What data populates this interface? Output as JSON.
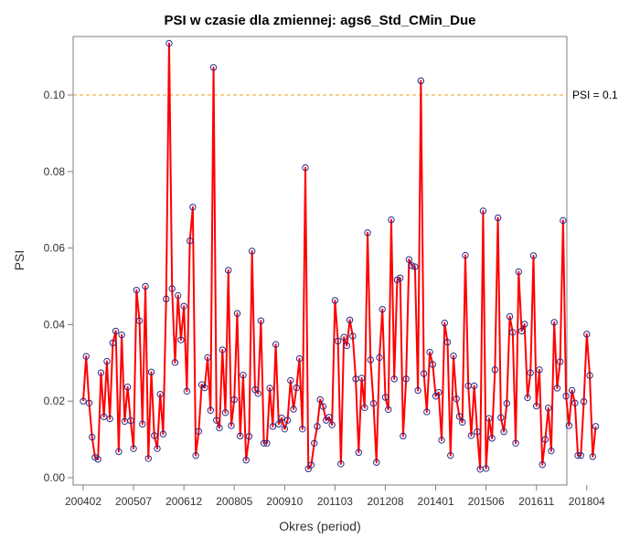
{
  "chart_data": {
    "type": "line",
    "title": "PSI w czasie dla zmiennej: ags6_Std_CMin_Due",
    "xlabel": "Okres (period)",
    "ylabel": "PSI",
    "ylim": [
      0,
      0.115
    ],
    "yticks": [
      "0.00",
      "0.02",
      "0.04",
      "0.06",
      "0.08",
      "0.10"
    ],
    "xticks": [
      "200402",
      "200507",
      "200612",
      "200805",
      "200910",
      "201103",
      "201208",
      "201401",
      "201506",
      "201611",
      "201804"
    ],
    "grid": false,
    "legend": "none",
    "reference_line": {
      "value": 0.1,
      "label": "PSI = 0.1",
      "color": "#e8a317"
    },
    "line_color": "#ff0000",
    "marker_color": "#2b2b8c",
    "x_start_period": "200402",
    "values": [
      0.02,
      0.0317,
      0.0195,
      0.0106,
      0.0053,
      0.0048,
      0.0274,
      0.0159,
      0.0304,
      0.0154,
      0.0352,
      0.0383,
      0.0068,
      0.0373,
      0.0147,
      0.0237,
      0.0149,
      0.0076,
      0.049,
      0.041,
      0.014,
      0.05,
      0.005,
      0.0276,
      0.011,
      0.0076,
      0.0218,
      0.0114,
      0.0467,
      0.1135,
      0.0494,
      0.0301,
      0.0476,
      0.036,
      0.0448,
      0.0226,
      0.0619,
      0.0707,
      0.0058,
      0.0121,
      0.0243,
      0.0235,
      0.0314,
      0.0176,
      0.1072,
      0.015,
      0.013,
      0.0334,
      0.017,
      0.0542,
      0.0136,
      0.0204,
      0.0429,
      0.0109,
      0.0268,
      0.0046,
      0.0108,
      0.0592,
      0.023,
      0.022,
      0.041,
      0.009,
      0.009,
      0.0234,
      0.0134,
      0.0348,
      0.014,
      0.0156,
      0.0127,
      0.015,
      0.0254,
      0.0179,
      0.0235,
      0.0311,
      0.0127,
      0.081,
      0.0023,
      0.0033,
      0.009,
      0.0134,
      0.0204,
      0.0186,
      0.015,
      0.0158,
      0.0138,
      0.0463,
      0.0357,
      0.0036,
      0.0367,
      0.0345,
      0.0412,
      0.037,
      0.0258,
      0.0066,
      0.026,
      0.0183,
      0.064,
      0.0308,
      0.0194,
      0.004,
      0.0314,
      0.044,
      0.021,
      0.0178,
      0.0674,
      0.0258,
      0.0517,
      0.0522,
      0.0109,
      0.0258,
      0.057,
      0.0554,
      0.0551,
      0.0228,
      0.1037,
      0.0272,
      0.0172,
      0.0328,
      0.0296,
      0.0213,
      0.0223,
      0.0098,
      0.0404,
      0.0354,
      0.0058,
      0.0318,
      0.0206,
      0.016,
      0.0145,
      0.0581,
      0.024,
      0.011,
      0.024,
      0.012,
      0.0022,
      0.0697,
      0.0024,
      0.0155,
      0.0103,
      0.0282,
      0.0679,
      0.0157,
      0.012,
      0.0194,
      0.0421,
      0.038,
      0.009,
      0.0538,
      0.0383,
      0.0401,
      0.0209,
      0.0274,
      0.058,
      0.0187,
      0.0282,
      0.0034,
      0.01,
      0.0182,
      0.007,
      0.0406,
      0.0234,
      0.0303,
      0.0672,
      0.0213,
      0.0136,
      0.0228,
      0.0195,
      0.0058,
      0.0058,
      0.0199,
      0.0375,
      0.0267,
      0.0055,
      0.0134
    ]
  }
}
